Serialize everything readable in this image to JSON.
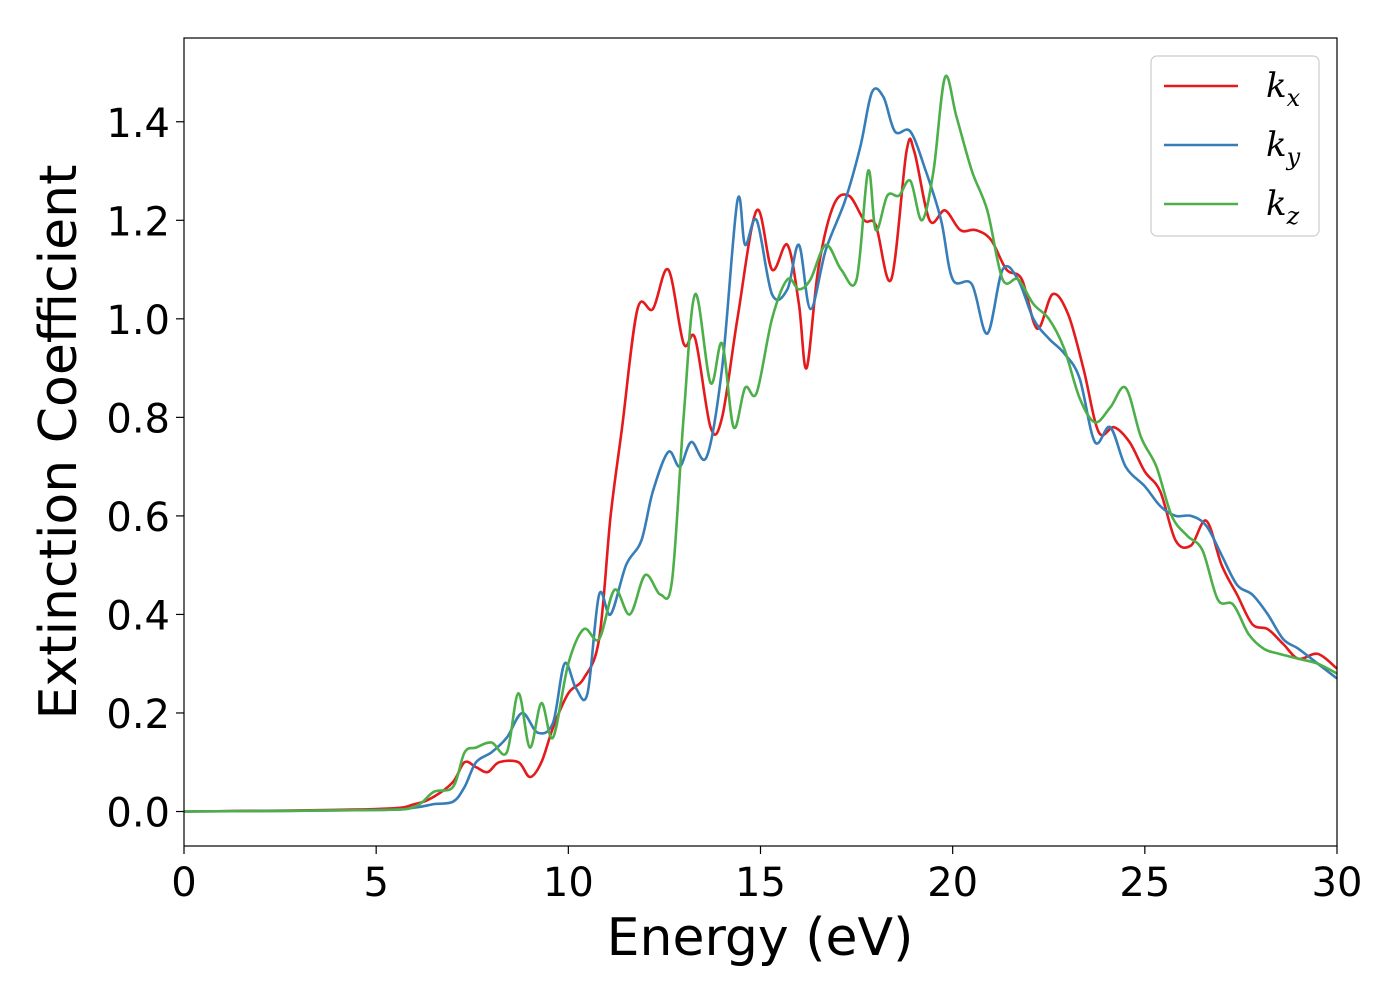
{
  "chart_data": {
    "type": "line",
    "xlabel": "Energy (eV)",
    "ylabel": "Extinction Coefficient",
    "xlim": [
      0,
      30
    ],
    "ylim": [
      -0.07,
      1.57
    ],
    "xticks": [
      0,
      5,
      10,
      15,
      20,
      25,
      30
    ],
    "yticks": [
      0.0,
      0.2,
      0.4,
      0.6,
      0.8,
      1.0,
      1.2,
      1.4
    ],
    "ytick_labels": [
      "0.0",
      "0.2",
      "0.4",
      "0.6",
      "0.8",
      "1.0",
      "1.2",
      "1.4"
    ],
    "legend_position": "top-right",
    "grid": false,
    "series": [
      {
        "name": "k",
        "subscript": "x",
        "color": "#e41a1c",
        "x": [
          0,
          5,
          6,
          6.5,
          7,
          7.3,
          7.6,
          7.9,
          8.2,
          8.7,
          9.0,
          9.3,
          9.6,
          10.0,
          10.4,
          10.8,
          11.1,
          11.4,
          11.8,
          12.2,
          12.6,
          13.0,
          13.3,
          13.7,
          14.0,
          14.4,
          14.9,
          15.3,
          15.7,
          16.0,
          16.2,
          16.5,
          16.9,
          17.3,
          17.7,
          18.0,
          18.4,
          18.8,
          19.0,
          19.4,
          19.8,
          20.2,
          20.6,
          21.0,
          21.4,
          21.8,
          22.2,
          22.6,
          23.0,
          23.4,
          23.8,
          24.2,
          24.6,
          25.0,
          25.4,
          25.8,
          26.2,
          26.6,
          27.0,
          27.4,
          27.8,
          28.2,
          28.6,
          29.0,
          29.5,
          30.0
        ],
        "y": [
          0.0,
          0.005,
          0.015,
          0.03,
          0.06,
          0.1,
          0.09,
          0.08,
          0.1,
          0.1,
          0.07,
          0.1,
          0.17,
          0.24,
          0.27,
          0.35,
          0.6,
          0.78,
          1.02,
          1.02,
          1.1,
          0.95,
          0.96,
          0.78,
          0.8,
          1.0,
          1.22,
          1.1,
          1.15,
          1.03,
          0.9,
          1.1,
          1.23,
          1.25,
          1.2,
          1.19,
          1.08,
          1.34,
          1.34,
          1.2,
          1.22,
          1.18,
          1.18,
          1.16,
          1.1,
          1.08,
          0.98,
          1.05,
          1.01,
          0.9,
          0.77,
          0.78,
          0.75,
          0.69,
          0.65,
          0.55,
          0.54,
          0.59,
          0.5,
          0.44,
          0.38,
          0.37,
          0.34,
          0.31,
          0.32,
          0.29
        ]
      },
      {
        "name": "k",
        "subscript": "y",
        "color": "#377eb8",
        "x": [
          0,
          5,
          6,
          6.5,
          7,
          7.3,
          7.6,
          8.0,
          8.4,
          8.8,
          9.2,
          9.6,
          9.9,
          10.2,
          10.5,
          10.8,
          11.1,
          11.5,
          11.9,
          12.2,
          12.6,
          12.9,
          13.2,
          13.6,
          14.0,
          14.4,
          14.6,
          14.9,
          15.3,
          15.7,
          16.0,
          16.3,
          16.7,
          17.2,
          17.6,
          17.9,
          18.2,
          18.5,
          18.9,
          19.3,
          19.7,
          20.0,
          20.5,
          20.9,
          21.3,
          21.7,
          22.1,
          22.5,
          22.9,
          23.3,
          23.7,
          24.1,
          24.5,
          25.0,
          25.4,
          25.8,
          26.2,
          26.6,
          27.0,
          27.4,
          27.8,
          28.2,
          28.6,
          29.0,
          29.5,
          30.0
        ],
        "y": [
          0.0,
          0.003,
          0.008,
          0.015,
          0.02,
          0.05,
          0.1,
          0.12,
          0.15,
          0.2,
          0.16,
          0.18,
          0.3,
          0.25,
          0.24,
          0.44,
          0.4,
          0.5,
          0.55,
          0.65,
          0.73,
          0.7,
          0.75,
          0.72,
          0.9,
          1.24,
          1.15,
          1.2,
          1.05,
          1.06,
          1.15,
          1.02,
          1.14,
          1.24,
          1.35,
          1.46,
          1.45,
          1.38,
          1.38,
          1.3,
          1.2,
          1.08,
          1.07,
          0.97,
          1.1,
          1.08,
          1.0,
          0.96,
          0.93,
          0.88,
          0.75,
          0.78,
          0.7,
          0.66,
          0.62,
          0.6,
          0.6,
          0.58,
          0.52,
          0.46,
          0.44,
          0.4,
          0.35,
          0.33,
          0.3,
          0.27
        ]
      },
      {
        "name": "k",
        "subscript": "z",
        "color": "#4daf4a",
        "x": [
          0,
          5,
          6,
          6.5,
          7,
          7.3,
          7.6,
          8.0,
          8.4,
          8.7,
          9.0,
          9.3,
          9.6,
          10.0,
          10.4,
          10.8,
          11.2,
          11.6,
          12.0,
          12.4,
          12.7,
          13.0,
          13.3,
          13.7,
          14.0,
          14.3,
          14.6,
          14.9,
          15.3,
          15.7,
          16.0,
          16.3,
          16.7,
          17.1,
          17.5,
          17.8,
          18.0,
          18.3,
          18.6,
          18.9,
          19.2,
          19.5,
          19.8,
          20.1,
          20.5,
          20.9,
          21.3,
          21.7,
          22.1,
          22.5,
          22.9,
          23.3,
          23.7,
          24.1,
          24.5,
          24.9,
          25.3,
          25.7,
          26.1,
          26.5,
          26.9,
          27.3,
          27.7,
          28.1,
          28.5,
          29.0,
          29.5,
          30.0
        ],
        "y": [
          0.0,
          0.003,
          0.01,
          0.04,
          0.05,
          0.12,
          0.13,
          0.14,
          0.12,
          0.24,
          0.13,
          0.22,
          0.15,
          0.3,
          0.37,
          0.35,
          0.45,
          0.4,
          0.48,
          0.44,
          0.47,
          0.8,
          1.05,
          0.87,
          0.95,
          0.78,
          0.86,
          0.85,
          1.0,
          1.08,
          1.06,
          1.08,
          1.15,
          1.1,
          1.08,
          1.3,
          1.18,
          1.25,
          1.25,
          1.28,
          1.2,
          1.3,
          1.49,
          1.41,
          1.3,
          1.22,
          1.08,
          1.08,
          1.03,
          1.0,
          0.94,
          0.84,
          0.79,
          0.82,
          0.86,
          0.76,
          0.7,
          0.6,
          0.56,
          0.53,
          0.43,
          0.42,
          0.36,
          0.33,
          0.32,
          0.31,
          0.3,
          0.28
        ]
      }
    ]
  }
}
